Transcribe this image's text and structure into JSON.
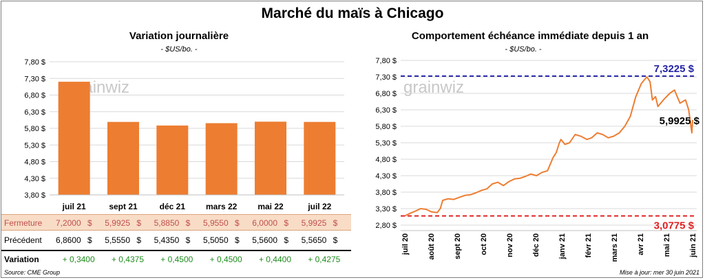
{
  "title": "Marché du maïs à Chicago",
  "left": {
    "title": "Variation  journalière",
    "unit": "- $US/bo. -",
    "watermark": "grainwiz",
    "chart_data": {
      "type": "bar",
      "categories": [
        "juil 21",
        "sept 21",
        "déc 21",
        "mars 22",
        "mai 22",
        "juil 22"
      ],
      "values": [
        7.2,
        5.9925,
        5.885,
        5.955,
        6.0,
        5.9925
      ],
      "ylim": [
        3.8,
        7.8
      ],
      "yticks": [
        "7,80 $",
        "7,30 $",
        "6,80 $",
        "6,30 $",
        "5,80 $",
        "5,30 $",
        "4,80 $",
        "4,30 $",
        "3,80 $"
      ],
      "color": "#ed7d31"
    },
    "table": {
      "rows": [
        {
          "label": "Fermeture",
          "values": [
            "7,2000",
            "5,9925",
            "5,8850",
            "5,9550",
            "6,0000",
            "5,9925"
          ],
          "currency": "$"
        },
        {
          "label": "Précédent",
          "values": [
            "6,8600",
            "5,5550",
            "5,4350",
            "5,5050",
            "5,5600",
            "5,5650"
          ],
          "currency": "$"
        },
        {
          "label": "Variation",
          "values": [
            "+ 0,3400",
            "+ 0,4375",
            "+ 0,4500",
            "+ 0,4500",
            "+ 0,4400",
            "+ 0,4275"
          ]
        }
      ]
    }
  },
  "right": {
    "title": "Comportement  échéance immédiate  depuis 1 an",
    "unit": "- $US/bo. -",
    "watermark": "grainwiz",
    "chart_data": {
      "type": "line",
      "x_labels": [
        "juil 20",
        "août 20",
        "sept 20",
        "oct 20",
        "nov 20",
        "déc 20",
        "janv 21",
        "févr 21",
        "mars 21",
        "avr 21",
        "mai 21",
        "juin 21"
      ],
      "ylim": [
        2.8,
        7.8
      ],
      "yticks": [
        "7,80 $",
        "7,30 $",
        "6,80 $",
        "6,30 $",
        "5,80 $",
        "5,30 $",
        "4,80 $",
        "4,30 $",
        "3,80 $",
        "3,30 $",
        "2,80 $"
      ],
      "series": [
        {
          "color": "#ed7d31",
          "x": [
            "2020-06-30",
            "2020-07-06",
            "2020-07-13",
            "2020-07-20",
            "2020-07-27",
            "2020-08-03",
            "2020-08-10",
            "2020-08-14",
            "2020-08-17",
            "2020-08-24",
            "2020-08-31",
            "2020-09-08",
            "2020-09-14",
            "2020-09-21",
            "2020-09-28",
            "2020-10-05",
            "2020-10-12",
            "2020-10-19",
            "2020-10-26",
            "2020-11-02",
            "2020-11-09",
            "2020-11-16",
            "2020-11-23",
            "2020-11-30",
            "2020-12-07",
            "2020-12-14",
            "2020-12-21",
            "2020-12-28",
            "2021-01-04",
            "2021-01-08",
            "2021-01-12",
            "2021-01-14",
            "2021-01-19",
            "2021-01-25",
            "2021-02-01",
            "2021-02-08",
            "2021-02-16",
            "2021-02-22",
            "2021-03-01",
            "2021-03-08",
            "2021-03-15",
            "2021-03-22",
            "2021-03-29",
            "2021-04-05",
            "2021-04-12",
            "2021-04-19",
            "2021-04-26",
            "2021-05-03",
            "2021-05-07",
            "2021-05-10",
            "2021-05-14",
            "2021-05-17",
            "2021-05-24",
            "2021-06-01",
            "2021-06-07",
            "2021-06-14",
            "2021-06-21",
            "2021-06-25",
            "2021-06-29",
            "2021-06-30"
          ],
          "y": [
            3.08,
            3.15,
            3.22,
            3.3,
            3.28,
            3.2,
            3.18,
            3.3,
            3.55,
            3.6,
            3.58,
            3.65,
            3.7,
            3.72,
            3.78,
            3.85,
            3.9,
            4.05,
            4.1,
            4.0,
            4.12,
            4.2,
            4.22,
            4.28,
            4.35,
            4.3,
            4.4,
            4.45,
            4.85,
            5.0,
            5.3,
            5.4,
            5.25,
            5.3,
            5.55,
            5.5,
            5.4,
            5.45,
            5.6,
            5.55,
            5.45,
            5.5,
            5.6,
            5.8,
            6.1,
            6.7,
            7.1,
            7.3,
            7.15,
            6.6,
            6.7,
            6.4,
            6.6,
            6.8,
            6.9,
            6.5,
            6.6,
            6.3,
            5.6,
            5.9925
          ]
        }
      ],
      "ref_lines": [
        {
          "value": 7.3225,
          "label": "7,3225 $",
          "color": "#2323a8"
        },
        {
          "value": 3.0775,
          "label": "3,0775 $",
          "color": "#e02020"
        }
      ],
      "last_label": "5,9925 $"
    }
  },
  "footer": {
    "source": "Source: CME Group",
    "updated": "Mise à jour: mer 30 juin 2021"
  }
}
